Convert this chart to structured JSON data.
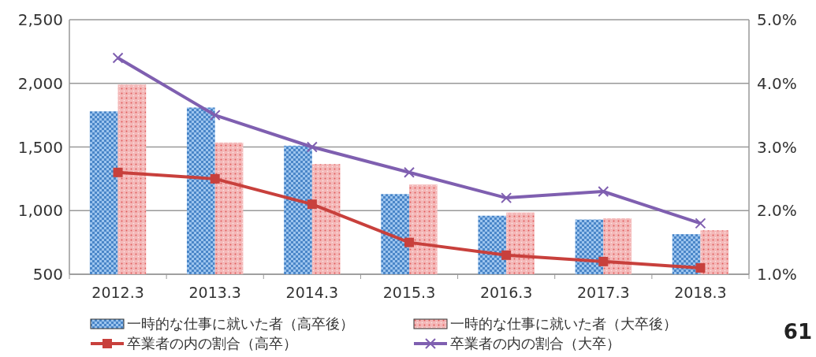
{
  "chart_data": {
    "type": "bar",
    "categories": [
      "2012.3",
      "2013.3",
      "2014.3",
      "2015.3",
      "2016.3",
      "2017.3",
      "2018.3"
    ],
    "series": [
      {
        "name": "一時的な仕事に就いた者（高卒後）",
        "color": "#4a86c8",
        "values": [
          1780,
          1810,
          1510,
          1130,
          960,
          930,
          815
        ]
      },
      {
        "name": "一時的な仕事に就いた者（大卒後）",
        "color": "#f4b8b8",
        "values": [
          1990,
          1535,
          1365,
          1205,
          985,
          940,
          845
        ]
      },
      {
        "name": "卒業者の内の割合（高卒）",
        "type": "line",
        "axis": "y2",
        "marker": "square",
        "color": "#c8403c",
        "values": [
          2.6,
          2.5,
          2.1,
          1.5,
          1.3,
          1.2,
          1.1
        ]
      },
      {
        "name": "卒業者の内の割合（大卒）",
        "type": "line",
        "axis": "y2",
        "marker": "cross",
        "color": "#7f5fb0",
        "values": [
          4.4,
          3.5,
          3.0,
          2.6,
          2.2,
          2.3,
          1.8
        ]
      }
    ],
    "ylim": [
      500,
      2500
    ],
    "yticks": [
      {
        "value": 500,
        "label": "500"
      },
      {
        "value": 1000,
        "label": "1,000"
      },
      {
        "value": 1500,
        "label": "1,500"
      },
      {
        "value": 2000,
        "label": "2,000"
      },
      {
        "value": 2500,
        "label": "2,500"
      }
    ],
    "y2lim": [
      1,
      5
    ],
    "y2ticks": [
      {
        "value": 1,
        "label": "1.0%"
      },
      {
        "value": 2,
        "label": "2.0%"
      },
      {
        "value": 3,
        "label": "3.0%"
      },
      {
        "value": 4,
        "label": "4.0%"
      },
      {
        "value": 5,
        "label": "5.0%"
      }
    ],
    "grid": "y",
    "legend": "bottom",
    "annotations": [
      "61"
    ]
  }
}
